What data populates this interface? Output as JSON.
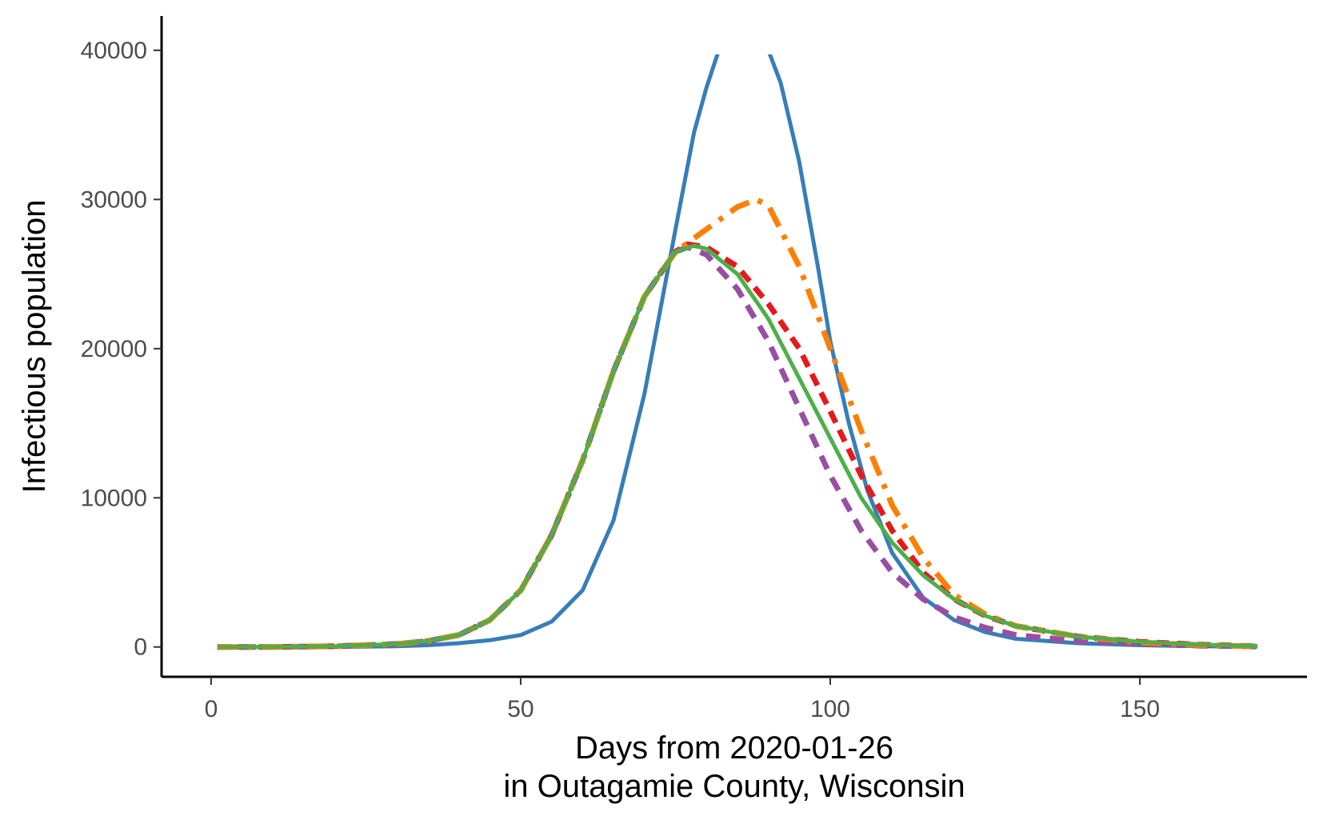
{
  "chart_data": {
    "type": "line",
    "title": "",
    "xlabel_line1": "Days from 2020-01-26",
    "xlabel_line2": "in Outagamie County, Wisconsin",
    "ylabel": "Infectious population",
    "xlim": [
      -8,
      177
    ],
    "ylim": [
      -2000,
      42300
    ],
    "x_ticks": [
      0,
      50,
      100,
      150
    ],
    "y_ticks": [
      0,
      10000,
      20000,
      30000,
      40000
    ],
    "x_tick_labels": [
      "0",
      "50",
      "100",
      "150"
    ],
    "y_tick_labels": [
      "0",
      "10000",
      "20000",
      "30000",
      "40000"
    ],
    "grid": false,
    "legend": "none",
    "series": [
      {
        "color": "#377eb8",
        "dash": "solid",
        "x": [
          1,
          10,
          20,
          30,
          35,
          40,
          45,
          50,
          55,
          60,
          65,
          70,
          75,
          78,
          80,
          82
        ],
        "y": [
          0,
          0,
          0,
          50,
          120,
          250,
          450,
          800,
          1700,
          3800,
          8500,
          17000,
          28000,
          34500,
          37500,
          40000
        ],
        "x2": [
          90,
          92,
          95,
          98,
          100,
          103,
          106,
          110,
          115,
          120,
          125,
          130,
          140,
          150,
          160,
          169
        ],
        "y2": [
          40000,
          37800,
          32500,
          25500,
          20500,
          15000,
          10500,
          6300,
          3300,
          1800,
          1000,
          550,
          250,
          120,
          50,
          20
        ]
      },
      {
        "color": "#e41a1c",
        "dash": "16,10",
        "x": [
          1,
          10,
          20,
          30,
          35,
          40,
          45,
          50,
          55,
          60,
          65,
          70,
          75,
          77,
          80,
          85,
          90,
          95,
          100,
          105,
          110,
          115,
          120,
          125,
          130,
          140,
          150,
          160,
          169
        ],
        "y": [
          0,
          0,
          50,
          200,
          400,
          800,
          1800,
          3800,
          7500,
          12500,
          18500,
          23500,
          26500,
          27000,
          26800,
          25500,
          23000,
          20000,
          15800,
          11500,
          7800,
          5000,
          3200,
          2100,
          1400,
          700,
          350,
          150,
          50
        ]
      },
      {
        "color": "#984ea3",
        "dash": "18,12",
        "x": [
          1,
          10,
          20,
          30,
          35,
          40,
          45,
          50,
          55,
          60,
          65,
          70,
          75,
          77,
          80,
          85,
          90,
          95,
          100,
          105,
          110,
          115,
          120,
          125,
          130,
          140,
          150,
          160,
          169
        ],
        "y": [
          0,
          0,
          50,
          200,
          400,
          800,
          1800,
          3800,
          7500,
          12500,
          18500,
          23500,
          26500,
          26800,
          26300,
          24000,
          20500,
          16000,
          11500,
          7800,
          5000,
          3200,
          2000,
          1300,
          800,
          400,
          200,
          80,
          30
        ]
      },
      {
        "color": "#ff7f00",
        "dash": "26,12,6,12",
        "x": [
          1,
          10,
          20,
          30,
          35,
          40,
          45,
          50,
          55,
          60,
          65,
          70,
          75,
          80,
          85,
          88,
          90,
          95,
          100,
          105,
          110,
          115,
          120,
          125,
          130,
          140,
          150,
          160,
          169
        ],
        "y": [
          0,
          0,
          50,
          200,
          400,
          800,
          1800,
          3800,
          7500,
          12500,
          18500,
          23500,
          26500,
          28000,
          29500,
          30000,
          29600,
          25500,
          20000,
          14500,
          9500,
          6000,
          3500,
          2200,
          1400,
          700,
          300,
          120,
          40
        ]
      },
      {
        "color": "#4daf4a",
        "dash": "solid",
        "x": [
          1,
          10,
          20,
          30,
          35,
          40,
          45,
          50,
          55,
          60,
          65,
          70,
          75,
          78,
          80,
          85,
          90,
          95,
          100,
          105,
          110,
          115,
          120,
          125,
          130,
          140,
          150,
          160,
          169
        ],
        "y": [
          0,
          0,
          50,
          200,
          400,
          800,
          1800,
          3800,
          7500,
          12500,
          18500,
          23500,
          26500,
          26900,
          26700,
          25000,
          22000,
          18000,
          14000,
          10000,
          7000,
          4800,
          3200,
          2100,
          1400,
          700,
          350,
          150,
          60
        ]
      }
    ]
  }
}
